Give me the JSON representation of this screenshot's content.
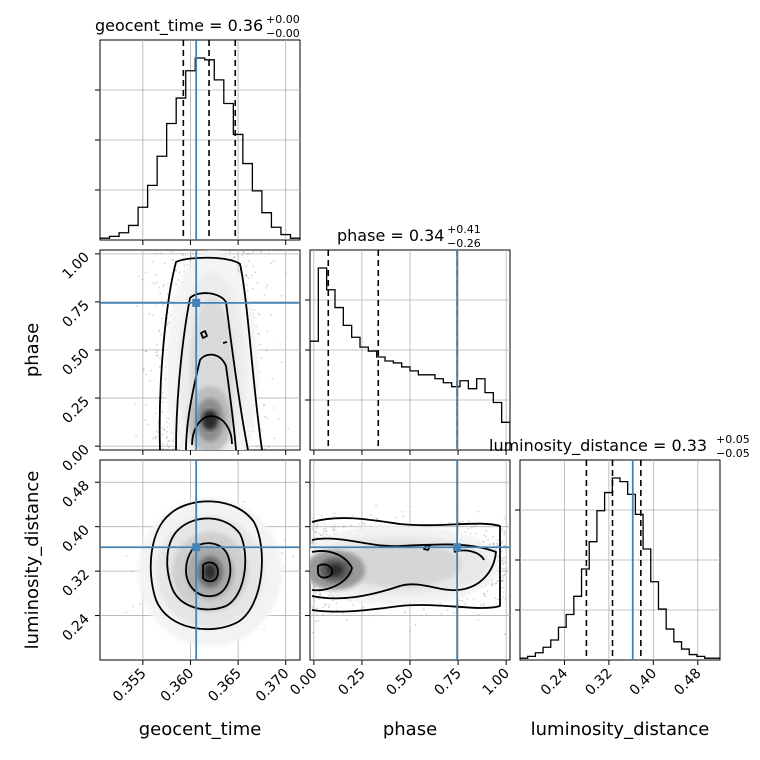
{
  "chart_data": {
    "type": "corner",
    "parameters": [
      {
        "key": "geocent_time",
        "label": "geocent_time",
        "range": [
          0.3505,
          0.3715
        ],
        "ticks": [
          0.355,
          0.36,
          0.365,
          0.37
        ],
        "tick_labels": [
          "0.355",
          "0.360",
          "0.365",
          "0.370"
        ],
        "title": {
          "name": "geocent_time",
          "value": "0.36",
          "upper": "+0.00",
          "lower": "−0.00"
        },
        "quantiles": [
          0.35925,
          0.36195,
          0.3647
        ],
        "truth": 0.3606,
        "histogram": [
          1,
          2,
          4,
          8,
          18,
          30,
          46,
          64,
          78,
          93,
          100,
          99,
          88,
          75,
          58,
          42,
          27,
          15,
          7,
          3,
          1
        ]
      },
      {
        "key": "phase",
        "label": "phase",
        "range": [
          -0.02,
          1.02
        ],
        "ticks": [
          0.0,
          0.25,
          0.5,
          0.75,
          1.0
        ],
        "tick_labels": [
          "0.00",
          "0.25",
          "0.50",
          "0.75",
          "1.00"
        ],
        "title": {
          "name": "phase",
          "value": "0.34",
          "upper": "+0.41",
          "lower": "−0.26"
        },
        "quantiles": [
          0.075,
          0.335,
          0.745
        ],
        "truth": 0.745,
        "histogram": [
          55,
          92,
          81,
          72,
          63,
          57,
          52,
          50,
          47,
          45,
          44,
          42,
          40,
          38,
          38,
          36,
          34,
          32,
          35,
          31,
          36,
          29,
          24,
          14
        ]
      },
      {
        "key": "luminosity_distance",
        "label": "luminosity_distance",
        "range": [
          0.16,
          0.52
        ],
        "ticks": [
          0.24,
          0.32,
          0.4,
          0.48
        ],
        "tick_labels": [
          "0.24",
          "0.32",
          "0.40",
          "0.48"
        ],
        "title": {
          "name": "luminosity_distance",
          "value": "0.33",
          "upper": "+0.05",
          "lower": "−0.05"
        },
        "quantiles": [
          0.2795,
          0.3265,
          0.3775
        ],
        "truth": 0.363,
        "histogram": [
          1,
          2,
          4,
          7,
          11,
          18,
          25,
          35,
          50,
          65,
          82,
          92,
          100,
          98,
          91,
          80,
          61,
          43,
          28,
          17,
          10,
          6,
          3,
          2,
          1,
          1
        ]
      }
    ],
    "pairs": [
      {
        "x": "geocent_time",
        "y": "phase",
        "truth_x": 0.3606,
        "truth_y": 0.745
      },
      {
        "x": "geocent_time",
        "y": "luminosity_distance",
        "truth_x": 0.3606,
        "truth_y": 0.363
      },
      {
        "x": "phase",
        "y": "luminosity_distance",
        "truth_x": 0.745,
        "truth_y": 0.363
      }
    ],
    "truth_color": "#4682b4",
    "grid": true
  }
}
